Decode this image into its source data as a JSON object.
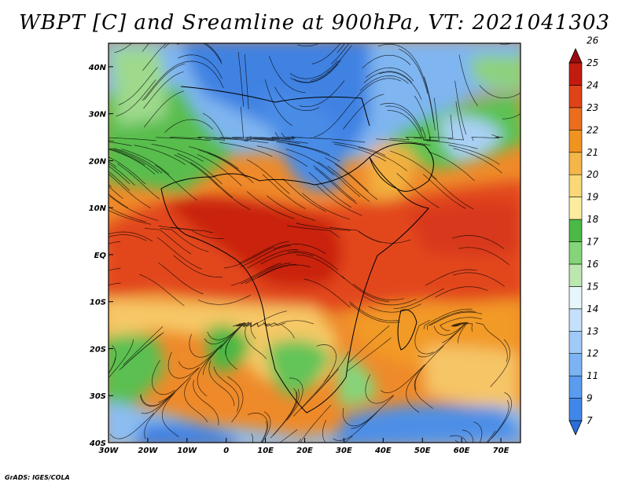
{
  "title": "WBPT [C] and Sreamline at 900hPa, VT: 2021041303",
  "footer": "GrADS: IGES/COLA",
  "map": {
    "lon_range": [
      -30,
      75
    ],
    "lat_range": [
      -40,
      45
    ],
    "lon_ticks": [
      {
        "value": -30,
        "label": "30W"
      },
      {
        "value": -20,
        "label": "20W"
      },
      {
        "value": -10,
        "label": "10W"
      },
      {
        "value": 0,
        "label": "0"
      },
      {
        "value": 10,
        "label": "10E"
      },
      {
        "value": 20,
        "label": "20E"
      },
      {
        "value": 30,
        "label": "30E"
      },
      {
        "value": 40,
        "label": "40E"
      },
      {
        "value": 50,
        "label": "50E"
      },
      {
        "value": 60,
        "label": "60E"
      },
      {
        "value": 70,
        "label": "70E"
      }
    ],
    "lat_ticks": [
      {
        "value": 40,
        "label": "40N"
      },
      {
        "value": 30,
        "label": "30N"
      },
      {
        "value": 20,
        "label": "20N"
      },
      {
        "value": 10,
        "label": "10N"
      },
      {
        "value": 0,
        "label": "EQ"
      },
      {
        "value": -10,
        "label": "10S"
      },
      {
        "value": -20,
        "label": "20S"
      },
      {
        "value": -30,
        "label": "30S"
      },
      {
        "value": -40,
        "label": "40S"
      }
    ]
  },
  "colorbar": {
    "levels": [
      "7",
      "9",
      "11",
      "12",
      "13",
      "14",
      "15",
      "16",
      "17",
      "18",
      "19",
      "20",
      "21",
      "22",
      "23",
      "24",
      "25",
      "26"
    ],
    "colors": [
      "#2a6fd8",
      "#3f87e8",
      "#5a9cee",
      "#7cb3f2",
      "#a0cbf6",
      "#c4e0fa",
      "#e6f6fb",
      "#bce8b0",
      "#86d47a",
      "#4cb845",
      "#fbeca0",
      "#f8d878",
      "#f4b648",
      "#f09320",
      "#ea6e1c",
      "#e04416",
      "#c21c10",
      "#9a0b0b"
    ]
  }
}
